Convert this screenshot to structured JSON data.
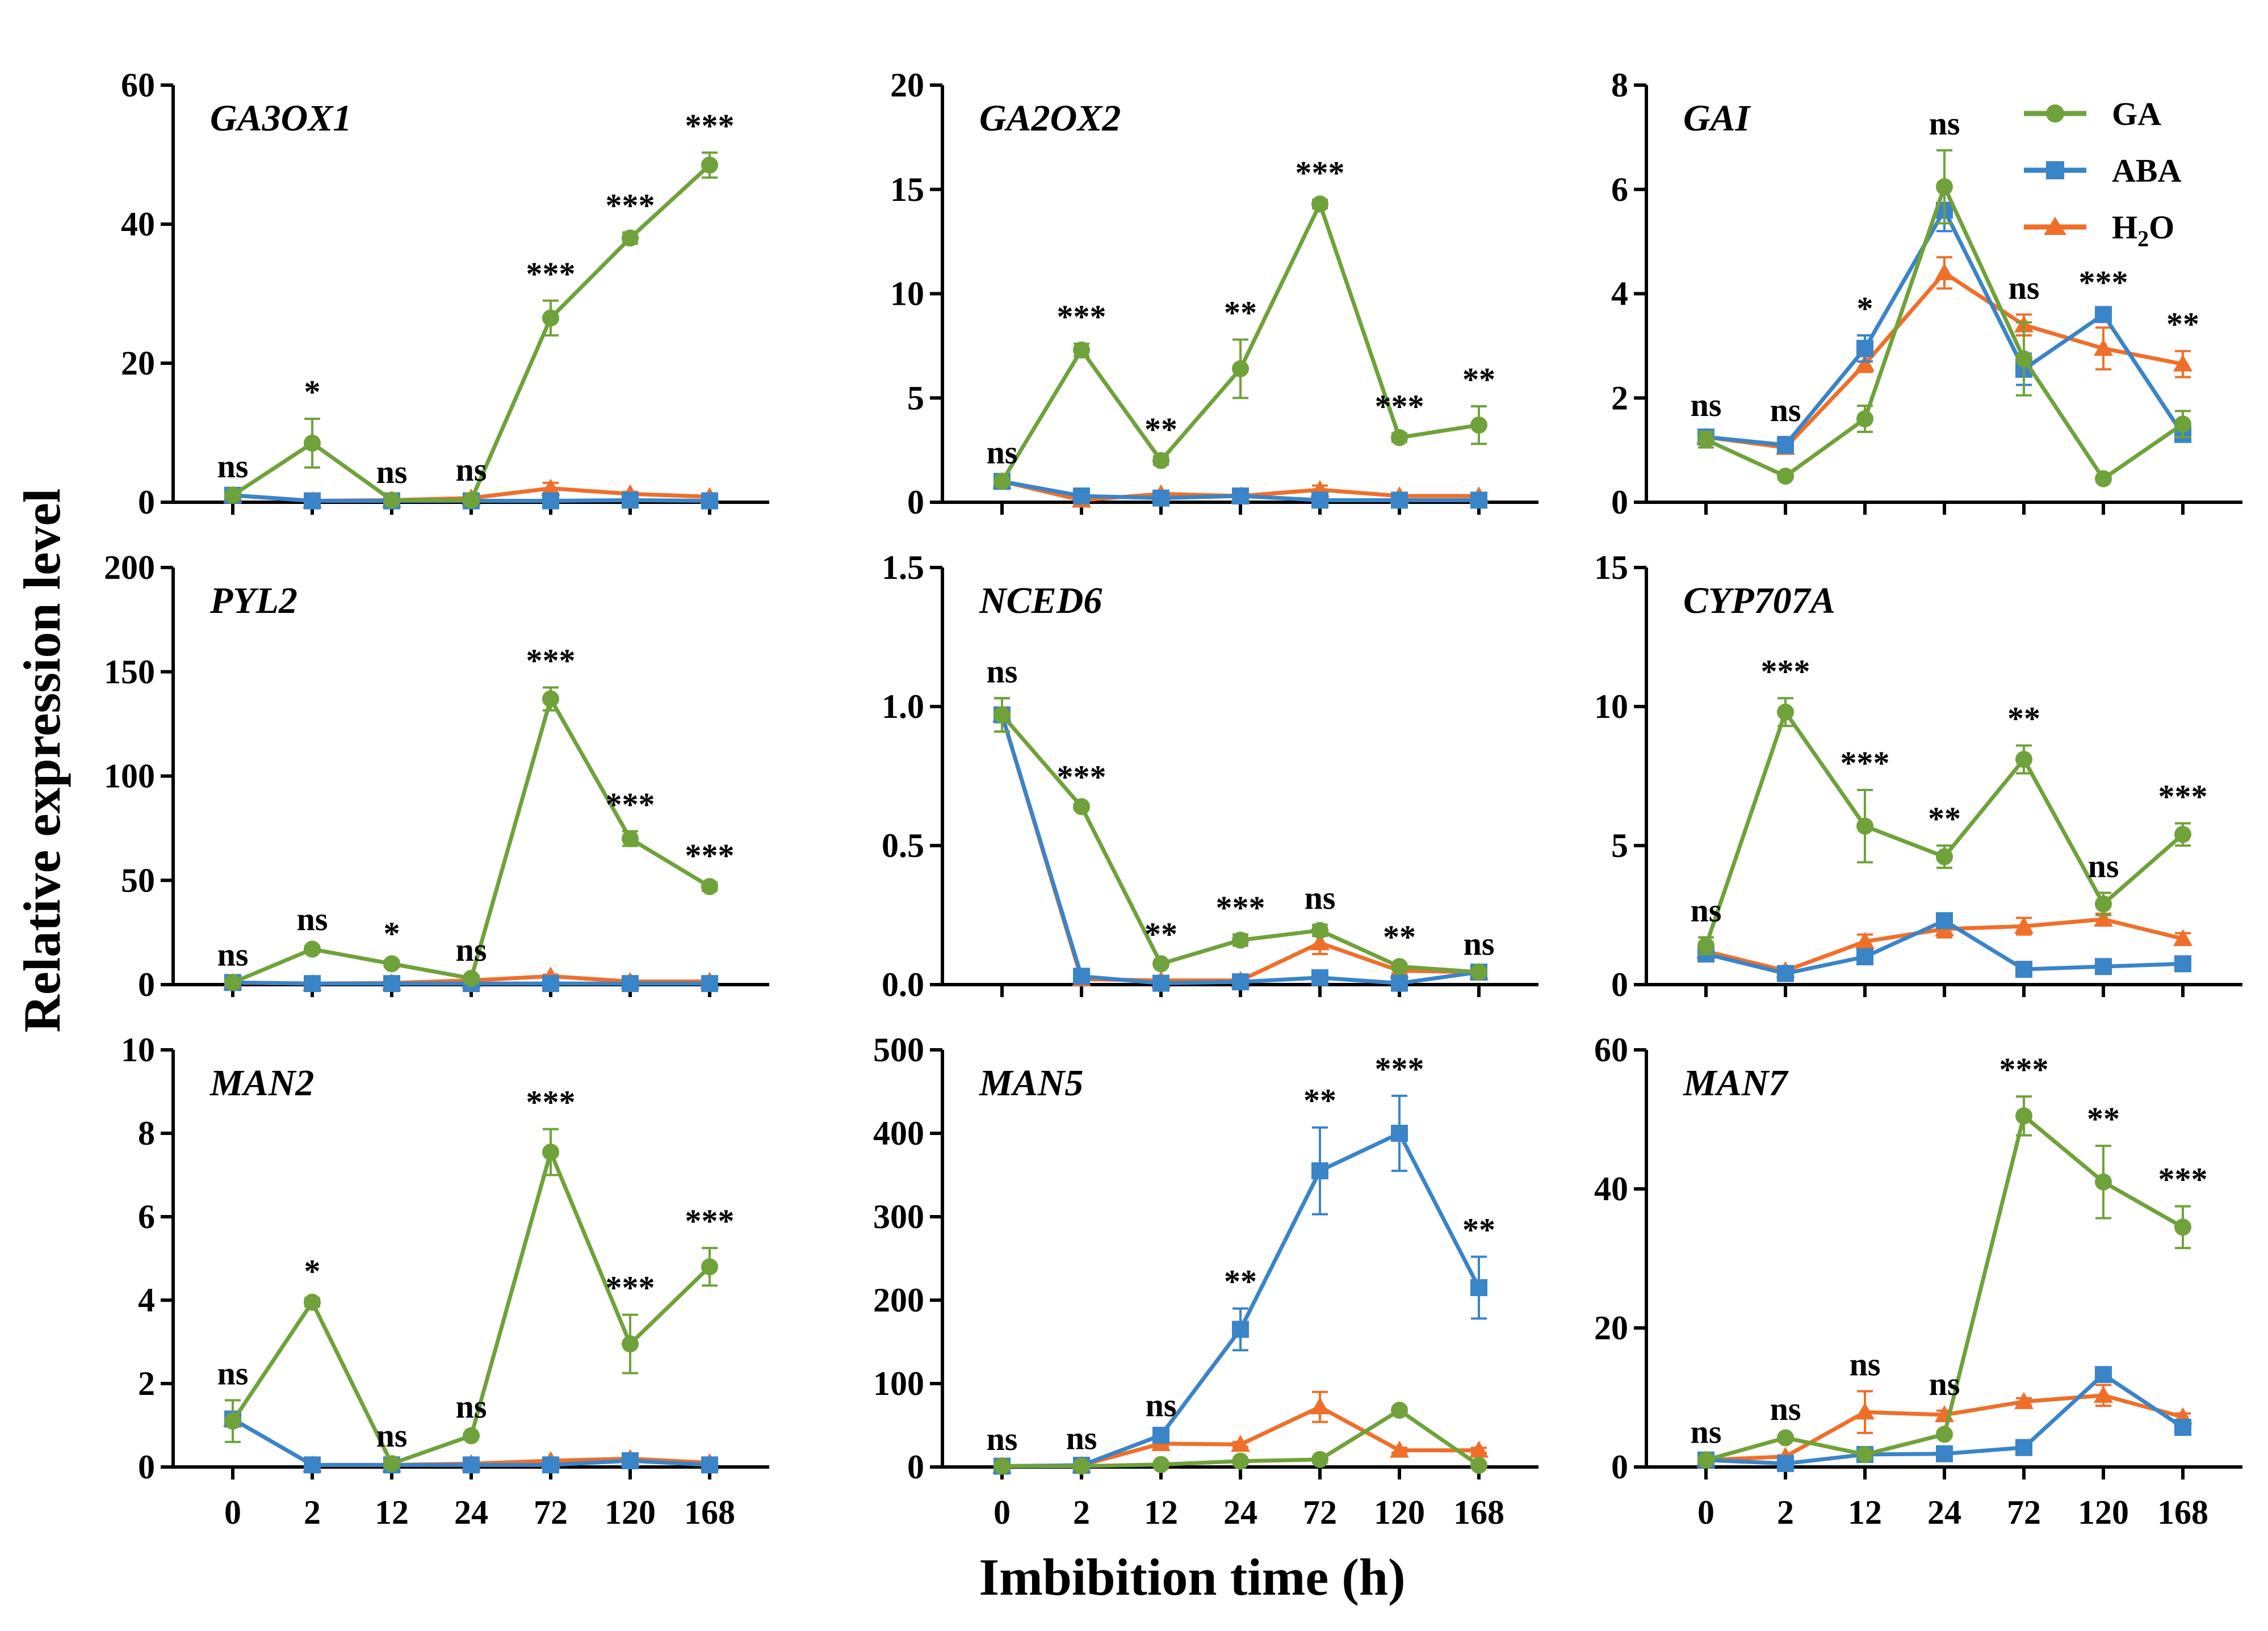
{
  "figure": {
    "ylabel": "Relative expression level",
    "xlabel": "Imbibition time (h)"
  },
  "legend": [
    {
      "name": "GA",
      "color": "#6fa23a",
      "marker": "circle"
    },
    {
      "name": "ABA",
      "color": "#3a84c8",
      "marker": "square"
    },
    {
      "name": "H2O",
      "label_main": "H",
      "label_sub": "2",
      "label_tail": "O",
      "color": "#ef6f2a",
      "marker": "triangle"
    }
  ],
  "chart_data": [
    {
      "type": "line",
      "title": "GA3OX1",
      "categories": [
        "0",
        "2",
        "12",
        "24",
        "72",
        "120",
        "168"
      ],
      "ylim": [
        0,
        60
      ],
      "yticks": [
        0,
        20,
        40,
        60
      ],
      "series": [
        {
          "name": "GA",
          "values": [
            1,
            8.5,
            0.3,
            0.3,
            26.5,
            38,
            48.5
          ],
          "errors": [
            0.3,
            3.5,
            0.2,
            0.2,
            2.5,
            0.8,
            1.8
          ]
        },
        {
          "name": "ABA",
          "values": [
            1,
            0.2,
            0.2,
            0.2,
            0.2,
            0.3,
            0.2
          ],
          "errors": [
            0.1,
            0.1,
            0.1,
            0.1,
            0.1,
            0.1,
            0.1
          ]
        },
        {
          "name": "H2O",
          "values": [
            1,
            0.2,
            0.3,
            0.6,
            2,
            1.2,
            0.8
          ],
          "errors": [
            0.1,
            0.1,
            0.1,
            0.2,
            0.8,
            0.3,
            0.2
          ]
        }
      ],
      "significance": [
        "ns",
        "*",
        "ns",
        "ns",
        "***",
        "***",
        "***"
      ]
    },
    {
      "type": "line",
      "title": "GA2OX2",
      "categories": [
        "0",
        "2",
        "12",
        "24",
        "72",
        "120",
        "168"
      ],
      "ylim": [
        0,
        20
      ],
      "yticks": [
        0,
        5,
        10,
        15,
        20
      ],
      "series": [
        {
          "name": "GA",
          "values": [
            1,
            7.3,
            2,
            6.4,
            14.3,
            3.1,
            3.7
          ],
          "errors": [
            0.1,
            0.3,
            0.2,
            1.4,
            0.2,
            0.2,
            0.9
          ]
        },
        {
          "name": "ABA",
          "values": [
            1,
            0.3,
            0.2,
            0.3,
            0.1,
            0.1,
            0.1
          ],
          "errors": [
            0.1,
            0.1,
            0.1,
            0.1,
            0.1,
            0.1,
            0.1
          ]
        },
        {
          "name": "H2O",
          "values": [
            1,
            0.1,
            0.4,
            0.3,
            0.6,
            0.3,
            0.3
          ],
          "errors": [
            0.1,
            0.1,
            0.1,
            0.1,
            0.2,
            0.1,
            0.1
          ]
        }
      ],
      "significance": [
        "ns",
        "***",
        "**",
        "**",
        "***",
        "***",
        "**"
      ]
    },
    {
      "type": "line",
      "title": "GAI",
      "categories": [
        "0",
        "2",
        "12",
        "24",
        "72",
        "120",
        "168"
      ],
      "ylim": [
        0,
        8
      ],
      "yticks": [
        0,
        2,
        4,
        6,
        8
      ],
      "series": [
        {
          "name": "GA",
          "values": [
            1.2,
            0.5,
            1.6,
            6.05,
            2.75,
            0.45,
            1.5
          ],
          "errors": [
            0.15,
            0.05,
            0.25,
            0.7,
            0.7,
            0.05,
            0.25
          ]
        },
        {
          "name": "ABA",
          "values": [
            1.25,
            1.1,
            2.95,
            5.6,
            2.55,
            3.6,
            1.3
          ],
          "errors": [
            0.1,
            0.15,
            0.25,
            0.4,
            0.3,
            0.1,
            0.1
          ]
        },
        {
          "name": "H2O",
          "values": [
            1.25,
            1.05,
            2.65,
            4.4,
            3.4,
            2.95,
            2.65
          ],
          "errors": [
            0.1,
            0.1,
            0.15,
            0.3,
            0.2,
            0.4,
            0.25
          ]
        }
      ],
      "significance": [
        "ns",
        "ns",
        "*",
        "ns",
        "ns",
        "***",
        "**"
      ]
    },
    {
      "type": "line",
      "title": "PYL2",
      "categories": [
        "0",
        "2",
        "12",
        "24",
        "72",
        "120",
        "168"
      ],
      "ylim": [
        0,
        200
      ],
      "yticks": [
        0,
        50,
        100,
        150,
        200
      ],
      "series": [
        {
          "name": "GA",
          "values": [
            1,
            17,
            10,
            3,
            137,
            70,
            47
          ],
          "errors": [
            0.5,
            1.5,
            1.5,
            0.8,
            5.5,
            3.5,
            2
          ]
        },
        {
          "name": "ABA",
          "values": [
            1,
            0.5,
            0.5,
            0.5,
            0.5,
            0.5,
            0.5
          ],
          "errors": [
            0.2,
            0.2,
            0.2,
            0.2,
            0.2,
            0.2,
            0.2
          ]
        },
        {
          "name": "H2O",
          "values": [
            1,
            0.5,
            0.8,
            2,
            4,
            1.5,
            1.5
          ],
          "errors": [
            0.2,
            0.2,
            0.2,
            0.5,
            0.8,
            0.4,
            0.4
          ]
        }
      ],
      "significance": [
        "ns",
        "ns",
        "*",
        "ns",
        "***",
        "***",
        "***"
      ]
    },
    {
      "type": "line",
      "title": "NCED6",
      "categories": [
        "0",
        "2",
        "12",
        "24",
        "72",
        "120",
        "168"
      ],
      "ylim": [
        0,
        1.5
      ],
      "yticks": [
        0,
        0.5,
        1.0,
        1.5
      ],
      "ytick_labels": [
        "0.0",
        "0.5",
        "1.0",
        "1.5"
      ],
      "series": [
        {
          "name": "GA",
          "values": [
            0.97,
            0.64,
            0.075,
            0.16,
            0.195,
            0.065,
            0.045
          ],
          "errors": [
            0.06,
            0.01,
            0.01,
            0.02,
            0.02,
            0.01,
            0.005
          ]
        },
        {
          "name": "ABA",
          "values": [
            0.97,
            0.03,
            0.005,
            0.01,
            0.025,
            0.005,
            0.045
          ],
          "errors": [
            0.06,
            0.01,
            0.003,
            0.003,
            0.005,
            0.003,
            0.005
          ]
        },
        {
          "name": "H2O",
          "values": [
            0.97,
            0.02,
            0.015,
            0.015,
            0.15,
            0.05,
            0.045
          ],
          "errors": [
            0.06,
            0.005,
            0.005,
            0.005,
            0.04,
            0.01,
            0.005
          ]
        }
      ],
      "significance": [
        "ns",
        "***",
        "**",
        "***",
        "ns",
        "**",
        "ns"
      ]
    },
    {
      "type": "line",
      "title": "CYP707A",
      "categories": [
        "0",
        "2",
        "12",
        "24",
        "72",
        "120",
        "168"
      ],
      "ylim": [
        0,
        15
      ],
      "yticks": [
        0,
        5,
        10,
        15
      ],
      "series": [
        {
          "name": "GA",
          "values": [
            1.4,
            9.8,
            5.7,
            4.6,
            8.1,
            2.9,
            5.4
          ],
          "errors": [
            0.3,
            0.5,
            1.3,
            0.4,
            0.5,
            0.4,
            0.4
          ]
        },
        {
          "name": "ABA",
          "values": [
            1.1,
            0.4,
            1.0,
            2.3,
            0.55,
            0.65,
            0.75
          ],
          "errors": [
            0.1,
            0.1,
            0.1,
            0.2,
            0.05,
            0.05,
            0.05
          ]
        },
        {
          "name": "H2O",
          "values": [
            1.2,
            0.5,
            1.55,
            2.0,
            2.1,
            2.35,
            1.65
          ],
          "errors": [
            0.1,
            0.1,
            0.25,
            0.3,
            0.3,
            0.2,
            0.2
          ]
        }
      ],
      "significance": [
        "ns",
        "***",
        "***",
        "**",
        "**",
        "ns",
        "***"
      ]
    },
    {
      "type": "line",
      "title": "MAN2",
      "categories": [
        "0",
        "2",
        "12",
        "24",
        "72",
        "120",
        "168"
      ],
      "ylim": [
        0,
        10
      ],
      "yticks": [
        0,
        2,
        4,
        6,
        8,
        10
      ],
      "series": [
        {
          "name": "GA",
          "values": [
            1.1,
            3.95,
            0.08,
            0.75,
            7.55,
            2.95,
            4.8
          ],
          "errors": [
            0.5,
            0.1,
            0.03,
            0.05,
            0.55,
            0.7,
            0.45
          ]
        },
        {
          "name": "ABA",
          "values": [
            1.15,
            0.05,
            0.05,
            0.05,
            0.05,
            0.15,
            0.05
          ],
          "errors": [
            0.1,
            0.02,
            0.02,
            0.02,
            0.02,
            0.05,
            0.02
          ]
        },
        {
          "name": "H2O",
          "values": [
            1.15,
            0.05,
            0.05,
            0.08,
            0.15,
            0.2,
            0.1
          ],
          "errors": [
            0.1,
            0.02,
            0.02,
            0.02,
            0.05,
            0.05,
            0.03
          ]
        }
      ],
      "significance": [
        "ns",
        "*",
        "ns",
        "ns",
        "***",
        "***",
        "***"
      ]
    },
    {
      "type": "line",
      "title": "MAN5",
      "categories": [
        "0",
        "2",
        "12",
        "24",
        "72",
        "120",
        "168"
      ],
      "ylim": [
        0,
        500
      ],
      "yticks": [
        0,
        100,
        200,
        300,
        400,
        500
      ],
      "series": [
        {
          "name": "GA",
          "values": [
            1,
            1,
            3,
            7,
            9,
            68,
            2
          ],
          "errors": [
            0.5,
            0.5,
            1,
            1.5,
            2,
            3,
            1
          ]
        },
        {
          "name": "ABA",
          "values": [
            1,
            2,
            38,
            165,
            355,
            400,
            215
          ],
          "errors": [
            0.5,
            0.5,
            4,
            25,
            52,
            45,
            37
          ]
        },
        {
          "name": "H2O",
          "values": [
            1,
            2,
            28,
            27,
            72,
            20,
            20
          ],
          "errors": [
            0.5,
            0.5,
            3,
            3,
            18,
            3,
            3
          ]
        }
      ],
      "significance": [
        "ns",
        "ns",
        "ns",
        "**",
        "**",
        "***",
        "**"
      ]
    },
    {
      "type": "line",
      "title": "MAN7",
      "categories": [
        "0",
        "2",
        "12",
        "24",
        "72",
        "120",
        "168"
      ],
      "ylim": [
        0,
        60
      ],
      "yticks": [
        0,
        20,
        40,
        60
      ],
      "series": [
        {
          "name": "GA",
          "values": [
            1,
            4.2,
            1.8,
            4.7,
            50.5,
            41,
            34.5
          ],
          "errors": [
            0.2,
            0.3,
            0.2,
            0.4,
            2.8,
            5.2,
            3
          ]
        },
        {
          "name": "ABA",
          "values": [
            1,
            0.5,
            1.8,
            1.9,
            2.8,
            13.3,
            5.7
          ],
          "errors": [
            0.2,
            0.1,
            0.2,
            0.2,
            0.3,
            0.4,
            0.4
          ]
        },
        {
          "name": "H2O",
          "values": [
            1,
            1.5,
            7.9,
            7.5,
            9.4,
            10.3,
            7.2
          ],
          "errors": [
            0.2,
            0.2,
            3,
            0.6,
            0.5,
            1.5,
            0.5
          ]
        }
      ],
      "significance": [
        "ns",
        "ns",
        "ns",
        "ns",
        "***",
        "**",
        "***"
      ]
    }
  ]
}
